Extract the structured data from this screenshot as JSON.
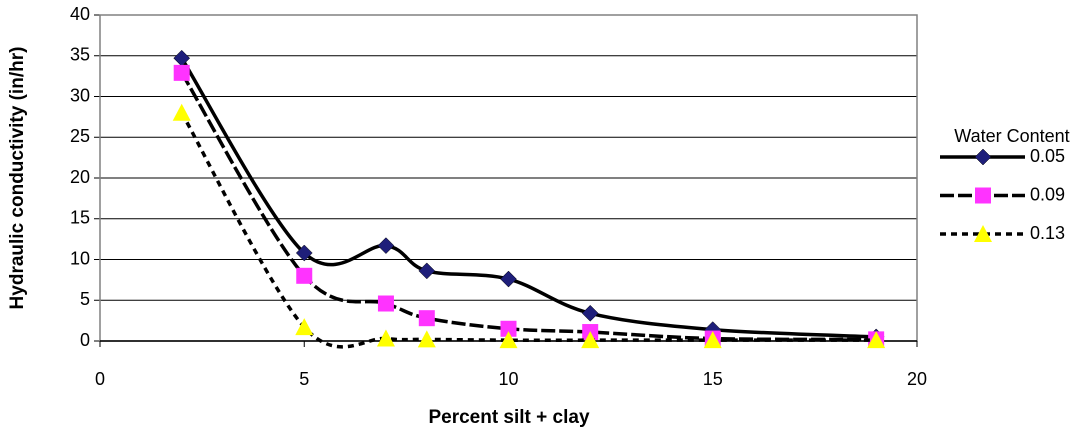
{
  "chart_data": {
    "type": "line",
    "x_label": "Percent silt + clay",
    "y_label": "Hydraulic conductivity (in/hr)",
    "legend_title": "Water Content",
    "legend": "right",
    "grid": true,
    "smooth": true,
    "x": [
      2,
      5,
      7,
      8,
      10,
      12,
      15,
      19
    ],
    "xlim": [
      0,
      20
    ],
    "xticks": [
      0,
      5,
      10,
      15,
      20
    ],
    "ylim": [
      0,
      40
    ],
    "yticks": [
      0,
      5,
      10,
      15,
      20,
      25,
      30,
      35,
      40
    ],
    "series": [
      {
        "name": "0.05",
        "color": "#1f1f7a",
        "line_color": "#000000",
        "marker": "diamond",
        "dash": "solid",
        "values": [
          34.7,
          10.8,
          11.7,
          8.6,
          7.6,
          3.4,
          1.4,
          0.5
        ]
      },
      {
        "name": "0.09",
        "color": "#ff33ff",
        "line_color": "#000000",
        "marker": "square",
        "dash": "long",
        "values": [
          32.9,
          8.0,
          4.6,
          2.8,
          1.5,
          1.1,
          0.3,
          0.2
        ]
      },
      {
        "name": "0.13",
        "color": "#ffff00",
        "line_color": "#000000",
        "marker": "triangle",
        "dash": "short",
        "values": [
          28.0,
          1.7,
          0.3,
          0.2,
          0.1,
          0.1,
          0.1,
          0.1
        ]
      }
    ]
  }
}
